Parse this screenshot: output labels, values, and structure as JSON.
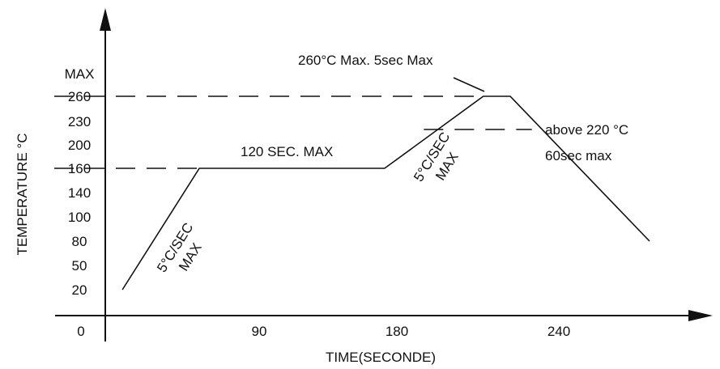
{
  "chart_data": {
    "type": "line",
    "title": "",
    "xlabel": "TIME(SECONDE)",
    "ylabel": "TEMPERATURE  °C",
    "x_ticks": [
      "0",
      "90",
      "180",
      "240"
    ],
    "y_ticks": [
      "20",
      "50",
      "80",
      "100",
      "140",
      "160",
      "200",
      "230",
      "260",
      "MAX"
    ],
    "series": [
      {
        "x": [
          10,
          55,
          172,
          212,
          222,
          280
        ],
        "y": [
          20,
          160,
          160,
          260,
          260,
          80
        ]
      }
    ],
    "reference_lines": [
      {
        "axis": "y",
        "value": 260
      },
      {
        "axis": "y",
        "value": 220
      },
      {
        "axis": "y",
        "value": 160
      }
    ],
    "annotations": [
      {
        "id": "peak",
        "text": "260°C  Max.  5sec Max"
      },
      {
        "id": "above220_line1",
        "text": "above 220 °C"
      },
      {
        "id": "above220_line2",
        "text": "60sec  max"
      },
      {
        "id": "soak",
        "text": "120 SEC. MAX"
      },
      {
        "id": "ramp1_line1",
        "text": "5°C/SEC"
      },
      {
        "id": "ramp1_line2",
        "text": "MAX"
      },
      {
        "id": "ramp2_line1",
        "text": "5°C/SEC"
      },
      {
        "id": "ramp2_line2",
        "text": "MAX"
      }
    ]
  }
}
